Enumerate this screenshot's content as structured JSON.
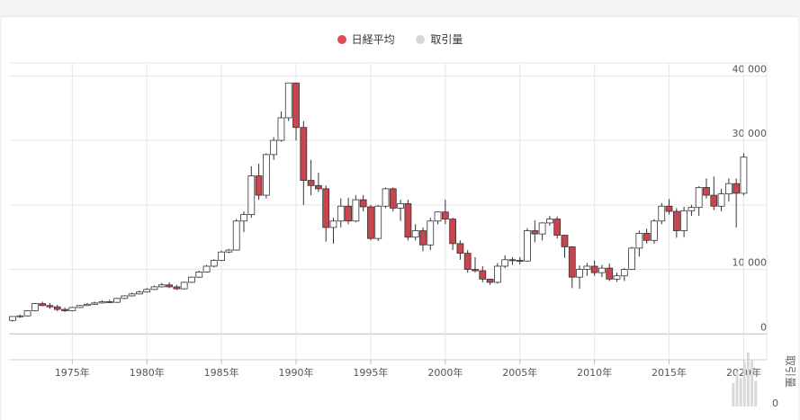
{
  "legend": [
    {
      "label": "日経平均",
      "color": "#dc4e5a"
    },
    {
      "label": "取引量",
      "color": "#d6d6d6"
    }
  ],
  "colors": {
    "up": "#ffffff",
    "down": "#c8444f",
    "stroke": "#333333",
    "grid": "#e6e6e6",
    "volume": "#d9d9d9"
  },
  "chart_data": {
    "type": "candlestick",
    "legend_position": "top-center",
    "grid": true,
    "xlim": [
      1971,
      2021.3
    ],
    "ylim": [
      -4000,
      42000
    ],
    "y_ticks": [
      0,
      10000,
      20000,
      30000,
      40000
    ],
    "y_tick_labels": [
      "0",
      "10 000",
      "",
      "30 000",
      "40 000"
    ],
    "x_ticks": [
      1975,
      1980,
      1985,
      1990,
      1995,
      2000,
      2005,
      2010,
      2015,
      2020
    ],
    "x_tick_labels": [
      "1975年",
      "1980年",
      "1985年",
      "1990年",
      "1995年",
      "2000年",
      "2005年",
      "2010年",
      "2015年",
      "2020年"
    ],
    "volume_axis_label": "取引量",
    "volume_axis_tick": "0",
    "series": [
      {
        "name": "日経平均",
        "candles": [
          [
            1971,
            2100,
            2700,
            1900,
            2700
          ],
          [
            1971.5,
            2700,
            3000,
            2500,
            2800
          ],
          [
            1972,
            2800,
            3700,
            2700,
            3600
          ],
          [
            1972.5,
            3600,
            4800,
            3500,
            4700
          ],
          [
            1973,
            4700,
            5000,
            4300,
            4400
          ],
          [
            1973.5,
            4400,
            4800,
            3900,
            4200
          ],
          [
            1974,
            4200,
            4500,
            3500,
            3800
          ],
          [
            1974.5,
            3800,
            4100,
            3400,
            3600
          ],
          [
            1975,
            3600,
            4200,
            3500,
            4100
          ],
          [
            1975.5,
            4100,
            4500,
            4000,
            4400
          ],
          [
            1976,
            4400,
            4800,
            4300,
            4600
          ],
          [
            1976.5,
            4600,
            5000,
            4500,
            4800
          ],
          [
            1977,
            4800,
            5200,
            4700,
            5000
          ],
          [
            1977.5,
            5000,
            5300,
            4800,
            4900
          ],
          [
            1978,
            4900,
            5600,
            4800,
            5500
          ],
          [
            1978.5,
            5500,
            6000,
            5400,
            5900
          ],
          [
            1979,
            5900,
            6400,
            5800,
            6200
          ],
          [
            1979.5,
            6200,
            6700,
            6100,
            6500
          ],
          [
            1980,
            6500,
            7100,
            6400,
            6900
          ],
          [
            1980.5,
            6900,
            7500,
            6800,
            7300
          ],
          [
            1981,
            7300,
            7900,
            7200,
            7600
          ],
          [
            1981.5,
            7600,
            8000,
            7100,
            7300
          ],
          [
            1982,
            7300,
            7600,
            6800,
            7000
          ],
          [
            1982.5,
            7000,
            8100,
            6900,
            8000
          ],
          [
            1983,
            8000,
            8900,
            7900,
            8800
          ],
          [
            1983.5,
            8800,
            9800,
            8700,
            9600
          ],
          [
            1984,
            9600,
            10700,
            9500,
            10500
          ],
          [
            1984.5,
            10500,
            11600,
            10300,
            11400
          ],
          [
            1985,
            11400,
            12900,
            11300,
            12700
          ],
          [
            1985.5,
            12700,
            13200,
            12500,
            13000
          ],
          [
            1986,
            13000,
            17800,
            12900,
            17500
          ],
          [
            1986.5,
            17500,
            19000,
            15800,
            18500
          ],
          [
            1987,
            18500,
            26000,
            18000,
            24500
          ],
          [
            1987.5,
            24500,
            26400,
            20800,
            21500
          ],
          [
            1988,
            21500,
            28000,
            21000,
            27800
          ],
          [
            1988.5,
            27800,
            30500,
            27000,
            30000
          ],
          [
            1989,
            30000,
            34500,
            29800,
            33500
          ],
          [
            1989.5,
            33500,
            38900,
            33000,
            38900
          ],
          [
            1990,
            38900,
            38900,
            30000,
            32000
          ],
          [
            1990.5,
            32000,
            33000,
            20000,
            23800
          ],
          [
            1991,
            23800,
            27000,
            21500,
            23000
          ],
          [
            1991.5,
            23000,
            25000,
            22000,
            22500
          ],
          [
            1992,
            22500,
            23000,
            14300,
            16500
          ],
          [
            1992.5,
            16500,
            18000,
            14000,
            17500
          ],
          [
            1993,
            17500,
            21000,
            16500,
            19800
          ],
          [
            1993.5,
            19800,
            21100,
            17000,
            17500
          ],
          [
            1994,
            17500,
            21500,
            17300,
            20800
          ],
          [
            1994.5,
            20800,
            21500,
            19000,
            19700
          ],
          [
            1995,
            19700,
            20000,
            14500,
            14800
          ],
          [
            1995.5,
            14800,
            20000,
            14400,
            19800
          ],
          [
            1996,
            19800,
            22700,
            19500,
            22500
          ],
          [
            1996.5,
            22500,
            22700,
            19000,
            19500
          ],
          [
            1997,
            19500,
            20800,
            17500,
            20200
          ],
          [
            1997.5,
            20200,
            20800,
            14500,
            15000
          ],
          [
            1998,
            15000,
            17000,
            14500,
            16000
          ],
          [
            1998.5,
            16000,
            16500,
            12800,
            13800
          ],
          [
            1999,
            13800,
            18000,
            13000,
            17500
          ],
          [
            1999.5,
            17500,
            19000,
            17000,
            18900
          ],
          [
            2000,
            18900,
            20800,
            17000,
            17800
          ],
          [
            2000.5,
            17800,
            18000,
            13000,
            14000
          ],
          [
            2001,
            14000,
            14500,
            11500,
            12500
          ],
          [
            2001.5,
            12500,
            13000,
            9500,
            10000
          ],
          [
            2002,
            10000,
            11900,
            9500,
            9800
          ],
          [
            2002.5,
            9800,
            10500,
            8000,
            8500
          ],
          [
            2003,
            8500,
            8500,
            7600,
            8000
          ],
          [
            2003.5,
            8000,
            11000,
            7800,
            10500
          ],
          [
            2004,
            10500,
            12200,
            10200,
            11500
          ],
          [
            2004.5,
            11500,
            11900,
            10700,
            11400
          ],
          [
            2005,
            11400,
            11900,
            10800,
            11300
          ],
          [
            2005.5,
            11300,
            16400,
            11200,
            16000
          ],
          [
            2006,
            16000,
            17600,
            14200,
            15500
          ],
          [
            2006.5,
            15500,
            17300,
            14500,
            17200
          ],
          [
            2007,
            17200,
            18300,
            16800,
            17800
          ],
          [
            2007.5,
            17800,
            18200,
            14800,
            15300
          ],
          [
            2008,
            15300,
            15300,
            11800,
            13500
          ],
          [
            2008.5,
            13500,
            13600,
            7100,
            8800
          ],
          [
            2009,
            8800,
            10600,
            7000,
            10000
          ],
          [
            2009.5,
            10000,
            11000,
            9000,
            10500
          ],
          [
            2010,
            10500,
            11400,
            9000,
            9500
          ],
          [
            2010.5,
            9500,
            10700,
            8800,
            10200
          ],
          [
            2011,
            10200,
            10900,
            8200,
            8500
          ],
          [
            2011.5,
            8500,
            9500,
            8100,
            9000
          ],
          [
            2012,
            9000,
            10200,
            8200,
            10000
          ],
          [
            2012.5,
            10000,
            13500,
            9900,
            13300
          ],
          [
            2013,
            13300,
            16000,
            12000,
            15600
          ],
          [
            2013.5,
            15600,
            16300,
            14000,
            14500
          ],
          [
            2014,
            14500,
            17800,
            14000,
            17500
          ],
          [
            2014.5,
            17500,
            20300,
            17000,
            19800
          ],
          [
            2015,
            19800,
            20900,
            18500,
            19000
          ],
          [
            2015.5,
            19000,
            19500,
            14900,
            16000
          ],
          [
            2016,
            16000,
            19700,
            15000,
            19100
          ],
          [
            2016.5,
            19100,
            20000,
            18300,
            19600
          ],
          [
            2017,
            19600,
            22900,
            18300,
            22700
          ],
          [
            2017.5,
            22700,
            24100,
            21000,
            21500
          ],
          [
            2018,
            21500,
            24400,
            19200,
            19800
          ],
          [
            2018.5,
            19800,
            22500,
            19000,
            21700
          ],
          [
            2019,
            21700,
            24100,
            20500,
            23300
          ],
          [
            2019.5,
            23300,
            24100,
            16500,
            21800
          ],
          [
            2020,
            21800,
            28000,
            21500,
            27400
          ]
        ]
      }
    ],
    "volume": [
      {
        "x": 2019.3,
        "value": 1.0
      },
      {
        "x": 2019.55,
        "value": 1.5
      },
      {
        "x": 2019.8,
        "value": 1.2
      },
      {
        "x": 2020.05,
        "value": 1.9
      },
      {
        "x": 2020.3,
        "value": 2.3
      },
      {
        "x": 2020.55,
        "value": 2.0
      },
      {
        "x": 2020.8,
        "value": 1.1
      }
    ]
  }
}
